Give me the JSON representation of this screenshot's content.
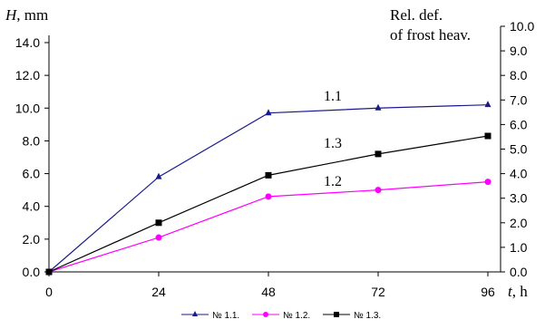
{
  "chart_data": {
    "type": "line",
    "x": [
      0,
      24,
      48,
      72,
      96
    ],
    "xlabel_italic": "t",
    "xlabel_unit": ", h",
    "xlim": [
      0,
      96
    ],
    "x_ticks": [
      "0",
      "24",
      "48",
      "72",
      "96"
    ],
    "ylabel_italic": "H",
    "ylabel_unit": ", mm",
    "ylim": [
      0,
      14
    ],
    "y_ticks": [
      "0.0",
      "2.0",
      "4.0",
      "6.0",
      "8.0",
      "10.0",
      "12.0",
      "14.0"
    ],
    "y2label_line1": "Rel. def.",
    "y2label_line2": "of frost heav.",
    "y2lim": [
      0,
      10
    ],
    "y2_ticks": [
      "0.0",
      "1.0",
      "2.0",
      "3.0",
      "4.0",
      "5.0",
      "6.0",
      "7.0",
      "8.0",
      "9.0",
      "10.0"
    ],
    "grid": false,
    "legend_position": "bottom",
    "series": [
      {
        "name": "№ 1.1.",
        "label": "1.1",
        "color": "#1a1a8c",
        "marker": "triangle",
        "values": [
          0.0,
          5.8,
          9.7,
          10.0,
          10.2
        ]
      },
      {
        "name": "№ 1.2.",
        "label": "1.2",
        "color": "#ff00ff",
        "marker": "circle",
        "values": [
          0.0,
          2.1,
          4.6,
          5.0,
          5.5
        ]
      },
      {
        "name": "№ 1.3.",
        "label": "1.3",
        "color": "#000000",
        "marker": "square",
        "values": [
          0.0,
          3.0,
          5.9,
          7.2,
          8.3
        ]
      }
    ]
  }
}
